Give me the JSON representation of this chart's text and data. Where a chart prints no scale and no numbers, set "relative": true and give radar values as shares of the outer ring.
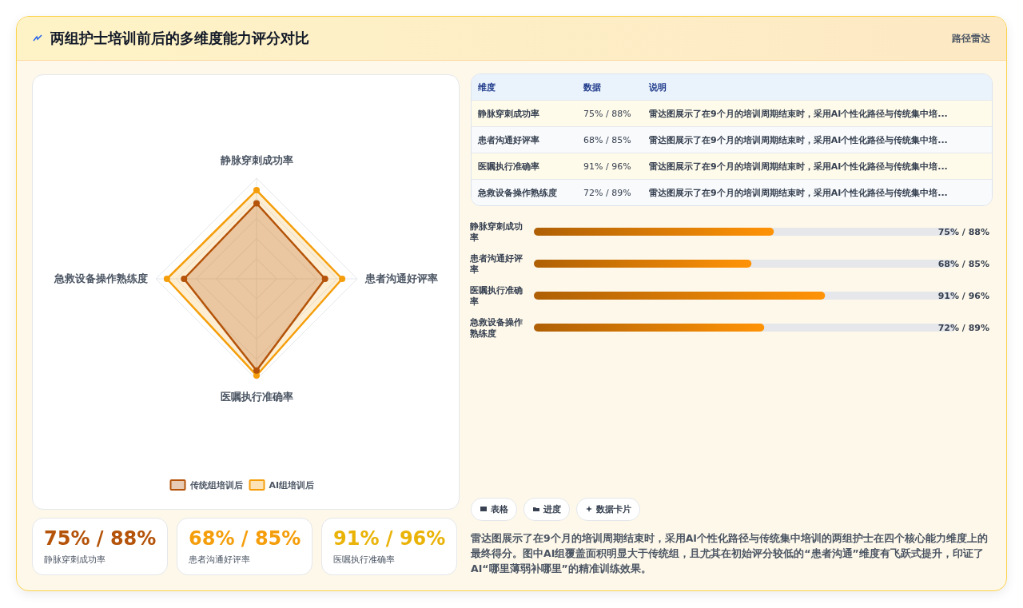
{
  "chart_data": [
    {
      "type": "other",
      "title": "两组护士培训前后的多维度能力评分对比",
      "subtitle": "路径雷达"
    },
    {
      "type": "radar",
      "relative": true,
      "categories": [
        "静脉穿刺成功率",
        "患者沟通好评率",
        "医嘱执行准确率",
        "急救设备操作熟练度"
      ],
      "series": [
        {
          "name": "传统组培训后",
          "color": "#b45309",
          "values": [
            0.75,
            0.68,
            0.91,
            0.72
          ]
        },
        {
          "name": "AI组培训后",
          "color": "#f59e0b",
          "values": [
            0.88,
            0.85,
            0.96,
            0.89
          ]
        }
      ],
      "grid": true,
      "legend": "bottom",
      "marker": "circle"
    },
    {
      "type": "bar",
      "orientation": "horizontal",
      "categories": [
        "静脉穿刺成功率",
        "患者沟通好评率",
        "医嘱执行准确率",
        "急救设备操作熟练度"
      ],
      "values": [
        75,
        68,
        91,
        72
      ],
      "value_labels": [
        "75% / 88%",
        "68% / 85%",
        "91% / 96%",
        "72% / 89%"
      ],
      "color": "#d97706"
    },
    {
      "type": "other",
      "categories": [
        "静脉穿刺成功率",
        "患者沟通好评率",
        "医嘱执行准确率",
        "急救设备操作熟练度"
      ],
      "value_labels": [
        "75% / 88%",
        "68% / 85%",
        "91% / 96%",
        "72% / 89%"
      ],
      "annotations": [
        "维度",
        "数据",
        "说明",
        "雷达图展示了在9个月的培训周期结束时，采用AI个性化路径与传统集中培...",
        "雷达图展示了在9个月的培训周期结束时，采用AI个性化路径与传统集中培...",
        "雷达图展示了在9个月的培训周期结束时，采用AI个性化路径与传统集中培...",
        "雷达图展示了在9个月的培训周期结束时，采用AI个性化路径与传统集中培..."
      ]
    },
    {
      "type": "other",
      "categories": [
        "静脉穿刺成功率",
        "患者沟通好评率",
        "医嘱执行准确率"
      ],
      "value_labels": [
        "75% / 88%",
        "68% / 85%",
        "91% / 96%"
      ]
    },
    {
      "type": "other",
      "annotations": [
        "表格",
        "进度",
        "数据卡片",
        "雷达图展示了在9个月的培训周期结束时，采用AI个性化路径与传统集中培训的两组护士在四个核心能力维度上的最终得分。图中AI组覆盖面积明显大于传统组，且尤其在初始评分较低的“患者沟通”维度有飞跃式提升，印证了AI“哪里薄弱补哪里”的精准训练效果。"
      ]
    }
  ]
}
